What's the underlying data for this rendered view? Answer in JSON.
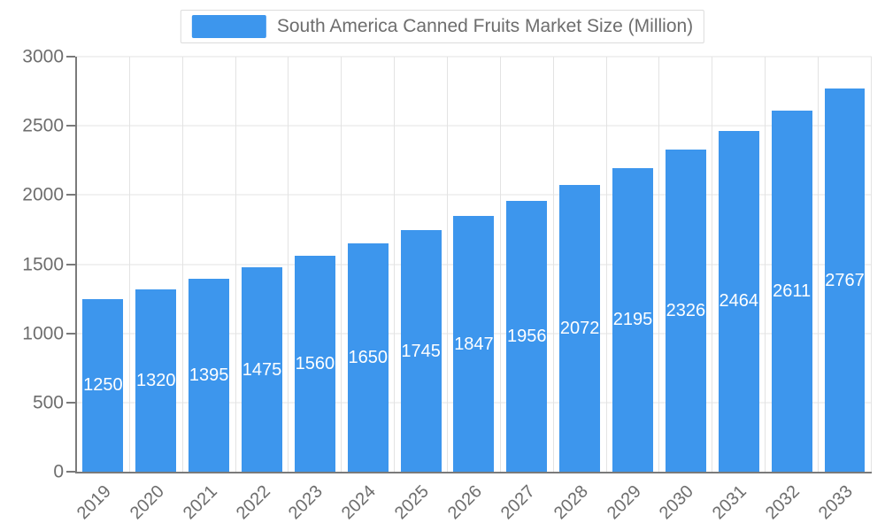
{
  "legend": {
    "label": "South America Canned Fruits Market Size (Million)",
    "swatch_color": "#3d96ed"
  },
  "chart_data": {
    "type": "bar",
    "title": "South America Canned Fruits Market Size (Million)",
    "categories": [
      "2019",
      "2020",
      "2021",
      "2022",
      "2023",
      "2024",
      "2025",
      "2026",
      "2027",
      "2028",
      "2029",
      "2030",
      "2031",
      "2032",
      "2033"
    ],
    "values": [
      1250,
      1320,
      1395,
      1475,
      1560,
      1650,
      1745,
      1847,
      1956,
      2072,
      2195,
      2326,
      2464,
      2611,
      2767
    ],
    "xlabel": "",
    "ylabel": "",
    "ylim": [
      0,
      3000
    ],
    "yticks": [
      0,
      500,
      1000,
      1500,
      2000,
      2500,
      3000
    ],
    "bar_color": "#3d96ed",
    "value_label_color": "#ffffff",
    "axis_color": "#7a7a7a",
    "gridline_color": "#e3e3e3",
    "tick_label_color": "#6d6d6d",
    "grid": true,
    "legend_position": "top"
  }
}
